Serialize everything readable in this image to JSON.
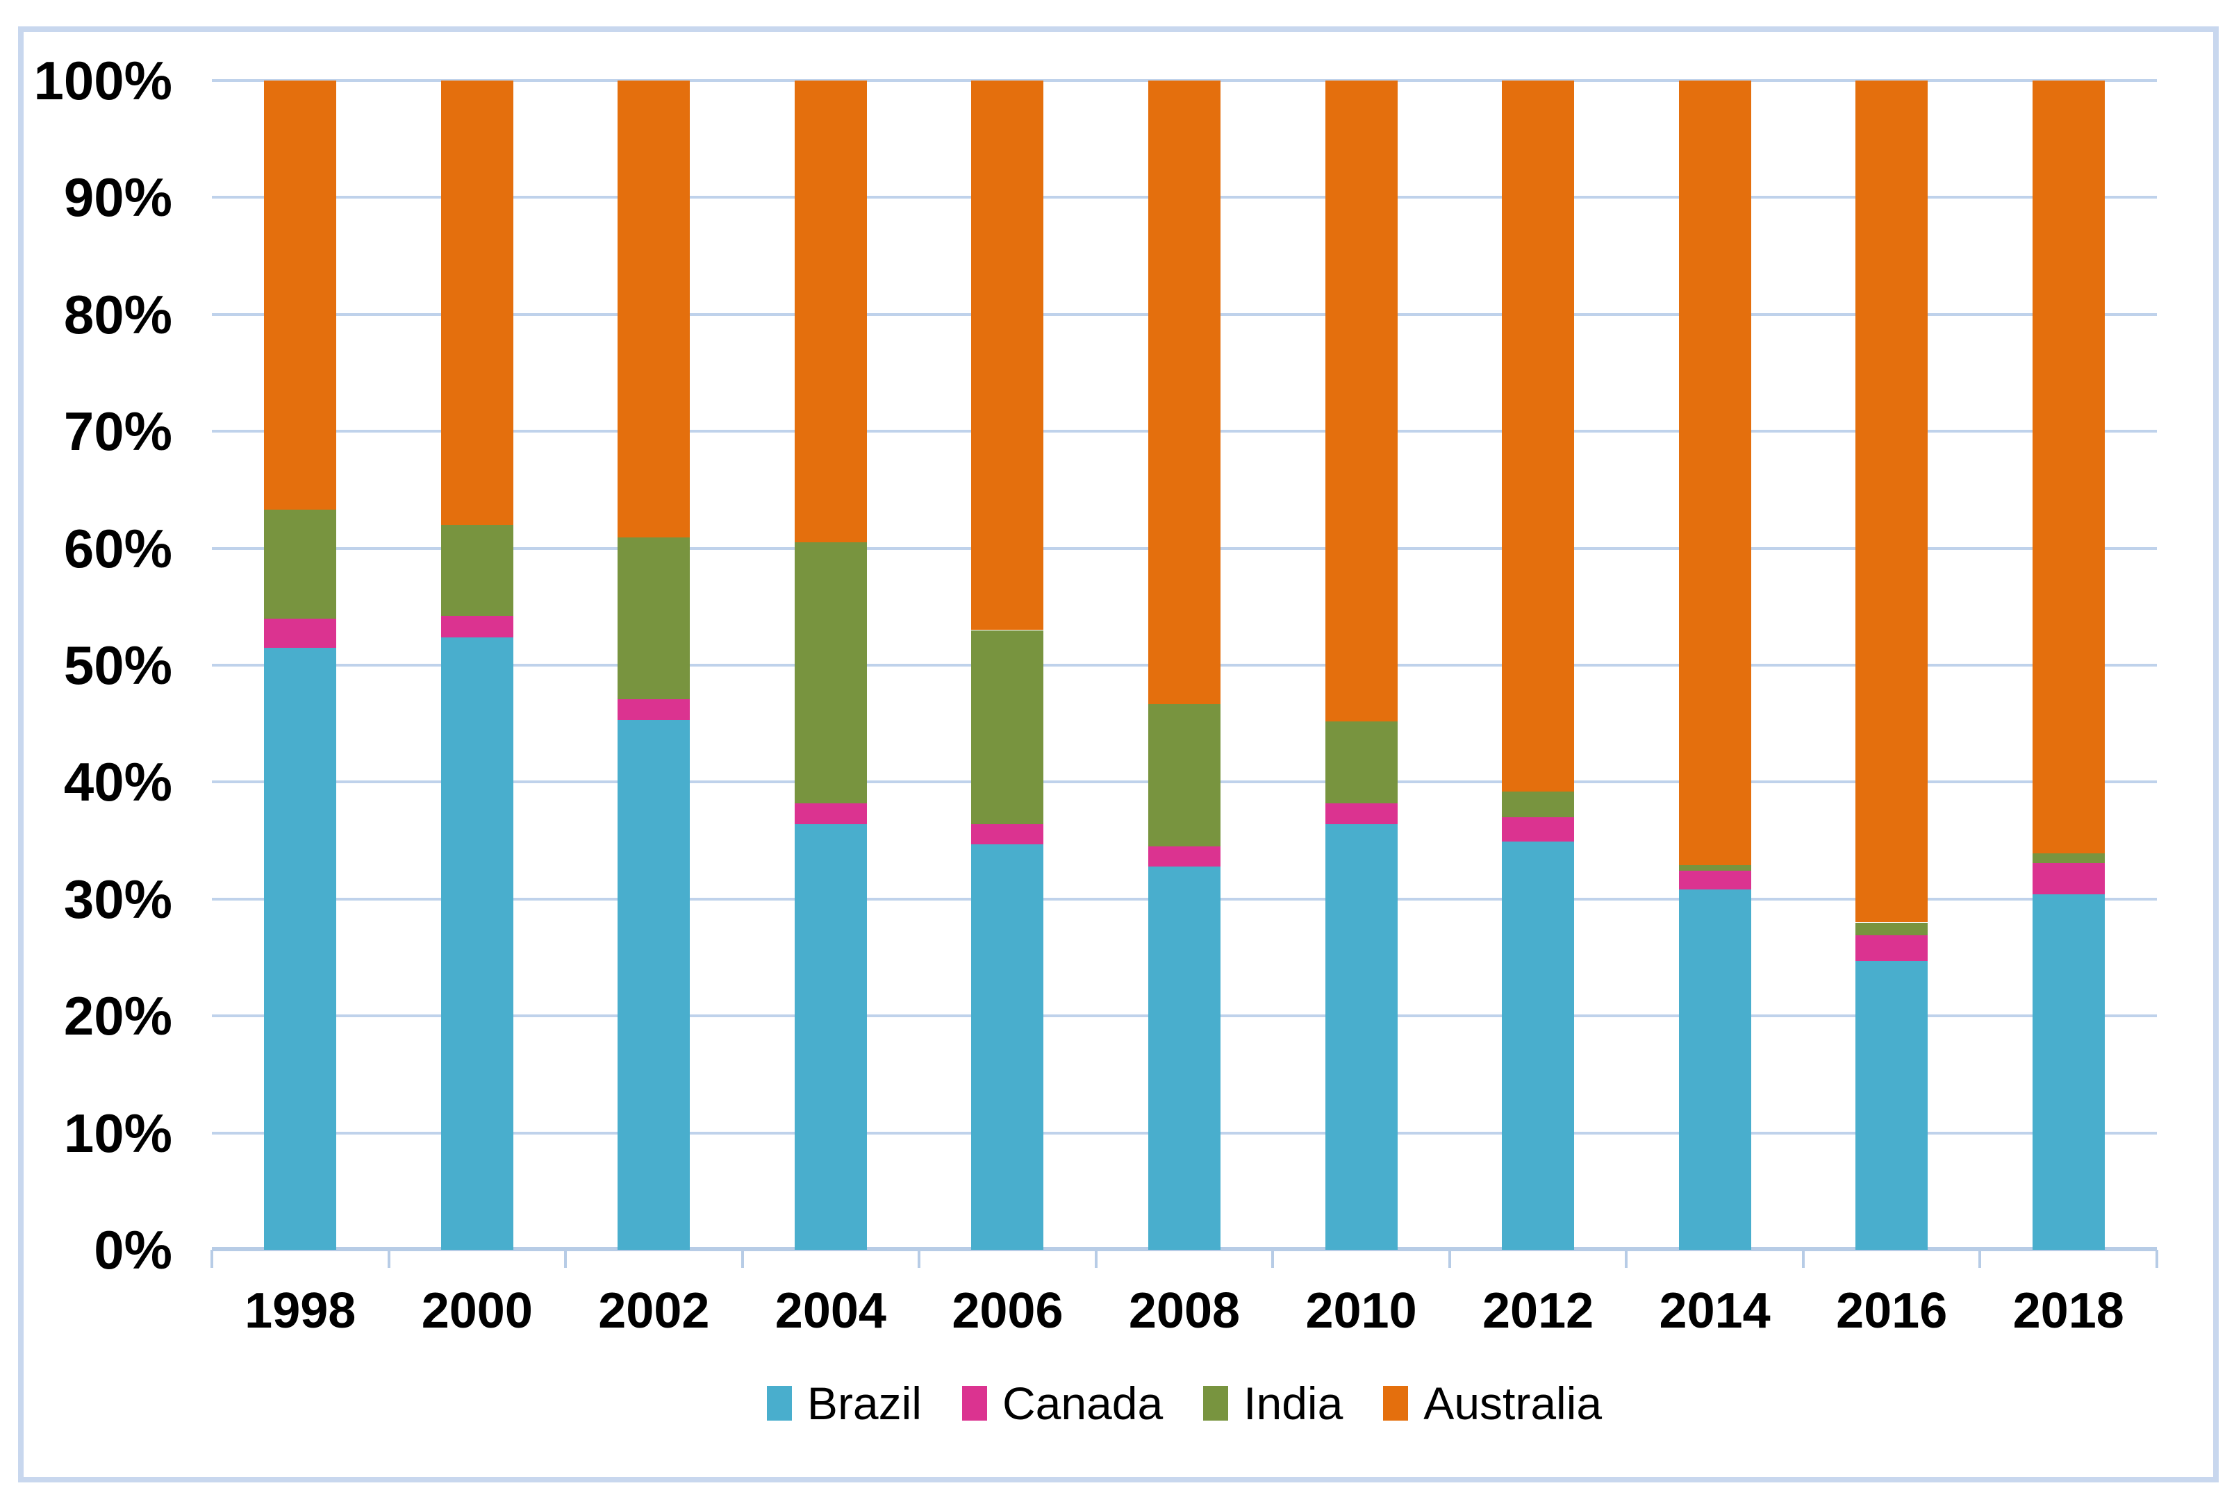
{
  "colors": {
    "background": "#FFFFFF",
    "frame_border": "#C8D7EE",
    "gridline": "#BFD2EB",
    "axis_line": "#B7CCE6",
    "text": "#000000"
  },
  "chart_data": {
    "type": "bar",
    "variant": "100-percent-stacked-column",
    "title": "",
    "xlabel": "",
    "ylabel": "",
    "grid": true,
    "legend_position": "bottom",
    "categories": [
      "1998",
      "2000",
      "2002",
      "2004",
      "2006",
      "2008",
      "2010",
      "2012",
      "2014",
      "2016",
      "2018"
    ],
    "series": [
      {
        "name": "Brazil",
        "color": "#49AECD",
        "values": [
          51.5,
          52.4,
          45.3,
          36.4,
          34.7,
          32.8,
          36.4,
          34.9,
          30.8,
          24.7,
          30.4
        ]
      },
      {
        "name": "Canada",
        "color": "#DB3390",
        "values": [
          2.5,
          1.8,
          1.8,
          1.8,
          1.7,
          1.7,
          1.8,
          2.1,
          1.6,
          2.2,
          2.7
        ]
      },
      {
        "name": "India",
        "color": "#78943F",
        "values": [
          9.3,
          7.8,
          13.8,
          22.3,
          16.6,
          12.2,
          7.0,
          2.2,
          0.5,
          1.1,
          0.8
        ]
      },
      {
        "name": "Australia",
        "color": "#E46F0D",
        "values": [
          36.7,
          38.0,
          39.1,
          39.5,
          47.0,
          53.3,
          54.8,
          60.8,
          67.1,
          72.0,
          66.1
        ]
      }
    ],
    "y_axis": {
      "min": 0,
      "max": 100,
      "step": 10,
      "tick_labels": [
        "0%",
        "10%",
        "20%",
        "30%",
        "40%",
        "50%",
        "60%",
        "70%",
        "80%",
        "90%",
        "100%"
      ]
    },
    "legend": [
      "Brazil",
      "Canada",
      "India",
      "Australia"
    ]
  }
}
